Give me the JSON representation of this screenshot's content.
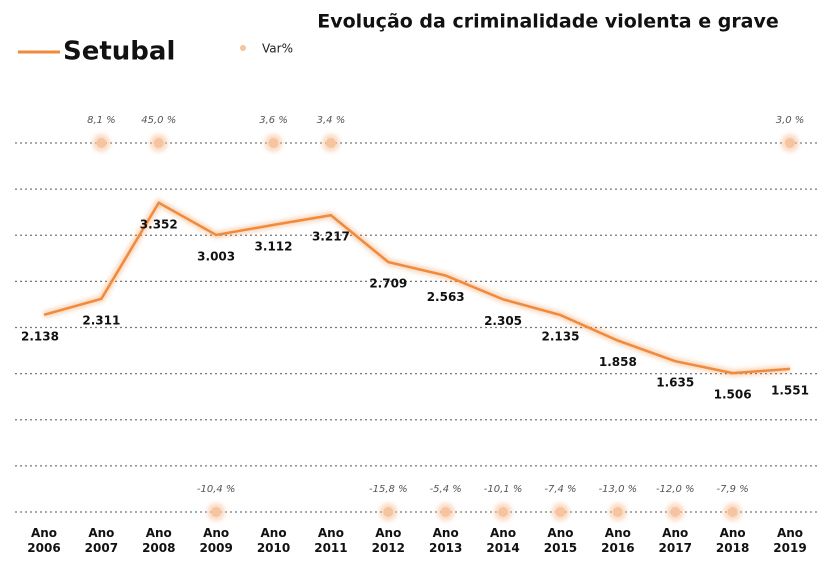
{
  "chart_data": {
    "type": "line",
    "title": "Evolução da criminalidade violenta e grave",
    "categories": [
      "Ano 2006",
      "Ano 2007",
      "Ano 2008",
      "Ano 2009",
      "Ano 2010",
      "Ano 2011",
      "Ano 2012",
      "Ano 2013",
      "Ano 2014",
      "Ano 2015",
      "Ano 2016",
      "Ano 2017",
      "Ano 2018",
      "Ano 2019"
    ],
    "series": [
      {
        "name": "Setubal",
        "color": "#f08a3c",
        "values": [
          2138,
          2311,
          3352,
          3003,
          3112,
          3217,
          2709,
          2563,
          2305,
          2135,
          1858,
          1635,
          1506,
          1551
        ],
        "value_labels": [
          "2.138",
          "2.311",
          "3.352",
          "3.003",
          "3.112",
          "3.217",
          "2.709",
          "2.563",
          "2.305",
          "2.135",
          "1.858",
          "1.635",
          "1.506",
          "1.551"
        ]
      },
      {
        "name": "Var%",
        "color": "#f7c4a0",
        "values": [
          null,
          8.1,
          45.0,
          -10.4,
          3.6,
          3.4,
          -15.8,
          -5.4,
          -10.1,
          -7.4,
          -13.0,
          -12.0,
          -7.9,
          3.0
        ],
        "value_labels": [
          null,
          "8,1 %",
          "45,0 %",
          "-10,4 %",
          "3,6 %",
          "3,4 %",
          "-15,8 %",
          "-5,4 %",
          "-10,1 %",
          "-7,4 %",
          "-13,0 %",
          "-12,0 %",
          "-7,9 %",
          "3,0 %"
        ]
      }
    ],
    "ylim": [
      0,
      4000
    ],
    "yticks": [
      0,
      500,
      1000,
      1500,
      2000,
      2500,
      3000,
      3500,
      4000
    ],
    "grid": true
  }
}
